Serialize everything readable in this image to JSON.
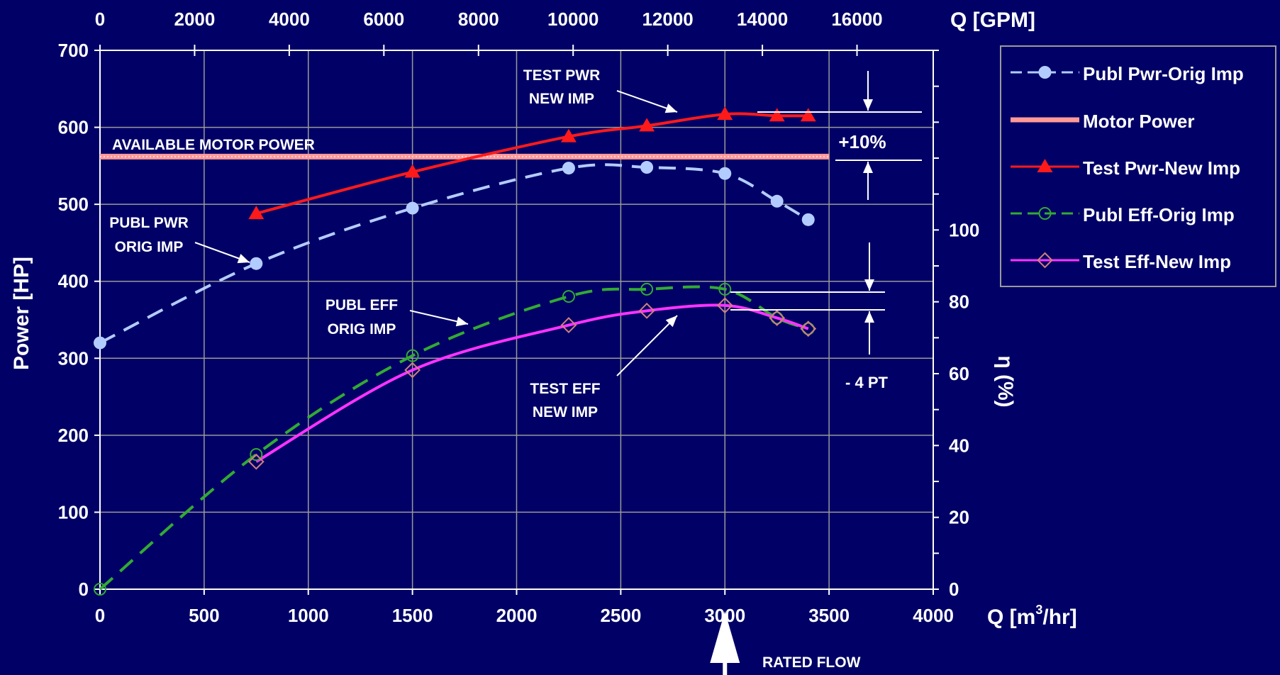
{
  "colors": {
    "background": "#000066",
    "grid": "#9a9a9a",
    "axis": "#ffffff",
    "publ_pwr": "#b3ccff",
    "motor_power": "#ff9999",
    "test_pwr": "#ff1a1a",
    "publ_eff": "#33aa33",
    "test_eff": "#ff33ff",
    "test_eff_marker": "#d08080"
  },
  "chart_data": {
    "type": "line",
    "title": "",
    "x_bottom": {
      "label": "Q [m",
      "label_sup": "3",
      "label_tail": "/hr]",
      "range": [
        0,
        4000
      ],
      "ticks": [
        0,
        500,
        1000,
        1500,
        2000,
        2500,
        3000,
        3500,
        4000
      ]
    },
    "x_top": {
      "label": "Q [GPM]",
      "range": [
        0,
        17611
      ],
      "ticks": [
        0,
        2000,
        4000,
        6000,
        8000,
        10000,
        12000,
        14000,
        16000
      ]
    },
    "y_left": {
      "label": "Power [HP]",
      "range": [
        0,
        700
      ],
      "ticks": [
        0,
        100,
        200,
        300,
        400,
        500,
        600,
        700
      ]
    },
    "y_right": {
      "label": "η (%)",
      "range": [
        0,
        150
      ],
      "ticks": [
        0,
        20,
        40,
        60,
        80,
        100
      ]
    },
    "grid": true,
    "legend_position": "right",
    "series": [
      {
        "name": "Publ Pwr-Orig Imp",
        "axis": "left",
        "style": "dashed",
        "marker": "circle",
        "x": [
          0,
          750,
          1500,
          2250,
          2625,
          3000,
          3250,
          3400
        ],
        "y": [
          320,
          423,
          495,
          547,
          548,
          540,
          504,
          480
        ]
      },
      {
        "name": "Motor Power",
        "axis": "left",
        "style": "band",
        "x": [
          0,
          3500
        ],
        "y": [
          562,
          562
        ]
      },
      {
        "name": "Test Pwr-New Imp",
        "axis": "left",
        "style": "solid",
        "marker": "triangle",
        "x": [
          750,
          1500,
          2250,
          2625,
          3000,
          3250,
          3400
        ],
        "y": [
          488,
          542,
          588,
          602,
          617,
          615,
          615
        ]
      },
      {
        "name": "Publ Eff-Orig Imp",
        "axis": "right",
        "style": "dashed",
        "marker": "open-circle",
        "x": [
          0,
          750,
          1500,
          2250,
          2625,
          3000,
          3250,
          3400
        ],
        "y": [
          0,
          37.5,
          65,
          81.5,
          83.5,
          83.5,
          75.5,
          72.5
        ]
      },
      {
        "name": "Test Eff-New Imp",
        "axis": "right",
        "style": "solid",
        "marker": "open-diamond",
        "x": [
          750,
          1500,
          2250,
          2625,
          3000,
          3250,
          3400
        ],
        "y": [
          35.5,
          61,
          73.5,
          77.5,
          79,
          75.5,
          72.5
        ]
      }
    ],
    "annotations": {
      "available_motor_power": "AVAILABLE MOTOR POWER",
      "test_pwr_line1": "TEST PWR",
      "test_pwr_line2": "NEW IMP",
      "publ_pwr_line1": "PUBL PWR",
      "publ_pwr_line2": "ORIG IMP",
      "publ_eff_line1": "PUBL EFF",
      "publ_eff_line2": "ORIG IMP",
      "test_eff_line1": "TEST EFF",
      "test_eff_line2": "NEW IMP",
      "plus_10": "+10%",
      "minus_4": "- 4 PT",
      "rated_flow": "RATED FLOW"
    }
  }
}
